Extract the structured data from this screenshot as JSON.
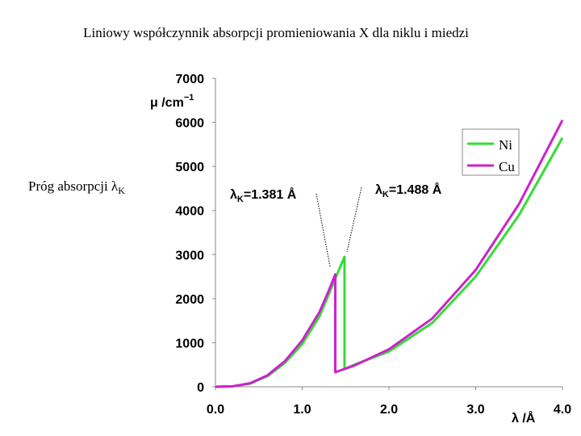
{
  "chart_data": {
    "type": "line",
    "title": "Liniowy współczynnik absorpcji promieniowania X dla niklu i miedzi",
    "side_label": {
      "text": "Próg absorpcji λ",
      "subscript": "K"
    },
    "y_label": {
      "text": "μ /cm",
      "superscript": "−1"
    },
    "x_label": "λ /Å",
    "annotations": [
      {
        "symbol": "λ",
        "subscript": "K",
        "text": "=1.381 Å"
      },
      {
        "symbol": "λ",
        "subscript": "K",
        "text": "=1.488 Å"
      }
    ],
    "xlim": [
      0,
      4
    ],
    "ylim": [
      0,
      7000
    ],
    "xticks": [
      {
        "value": 0,
        "label": "0.0"
      },
      {
        "value": 1,
        "label": "1.0"
      },
      {
        "value": 2,
        "label": "2.0"
      },
      {
        "value": 3,
        "label": "3.0"
      },
      {
        "value": 4,
        "label": "4.0"
      }
    ],
    "yticks": [
      0,
      1000,
      2000,
      3000,
      4000,
      5000,
      6000,
      7000
    ],
    "legend": "upper right",
    "series": [
      {
        "name": "Ni",
        "color": "#33dd33",
        "x": [
          0,
          0.2,
          0.4,
          0.6,
          0.8,
          1.0,
          1.2,
          1.381,
          1.488,
          1.488,
          1.6,
          2.0,
          2.5,
          3.0,
          3.5,
          4.0
        ],
        "values": [
          0,
          10,
          70,
          240,
          540,
          970,
          1600,
          2450,
          2950,
          400,
          500,
          800,
          1450,
          2500,
          3900,
          5650
        ]
      },
      {
        "name": "Cu",
        "color": "#cc22cc",
        "x": [
          0,
          0.2,
          0.4,
          0.6,
          0.8,
          1.0,
          1.2,
          1.3,
          1.381,
          1.381,
          1.6,
          2.0,
          2.5,
          3.0,
          3.5,
          4.0
        ],
        "values": [
          0,
          10,
          80,
          260,
          580,
          1050,
          1700,
          2150,
          2550,
          330,
          480,
          850,
          1550,
          2650,
          4150,
          6050
        ]
      }
    ]
  }
}
